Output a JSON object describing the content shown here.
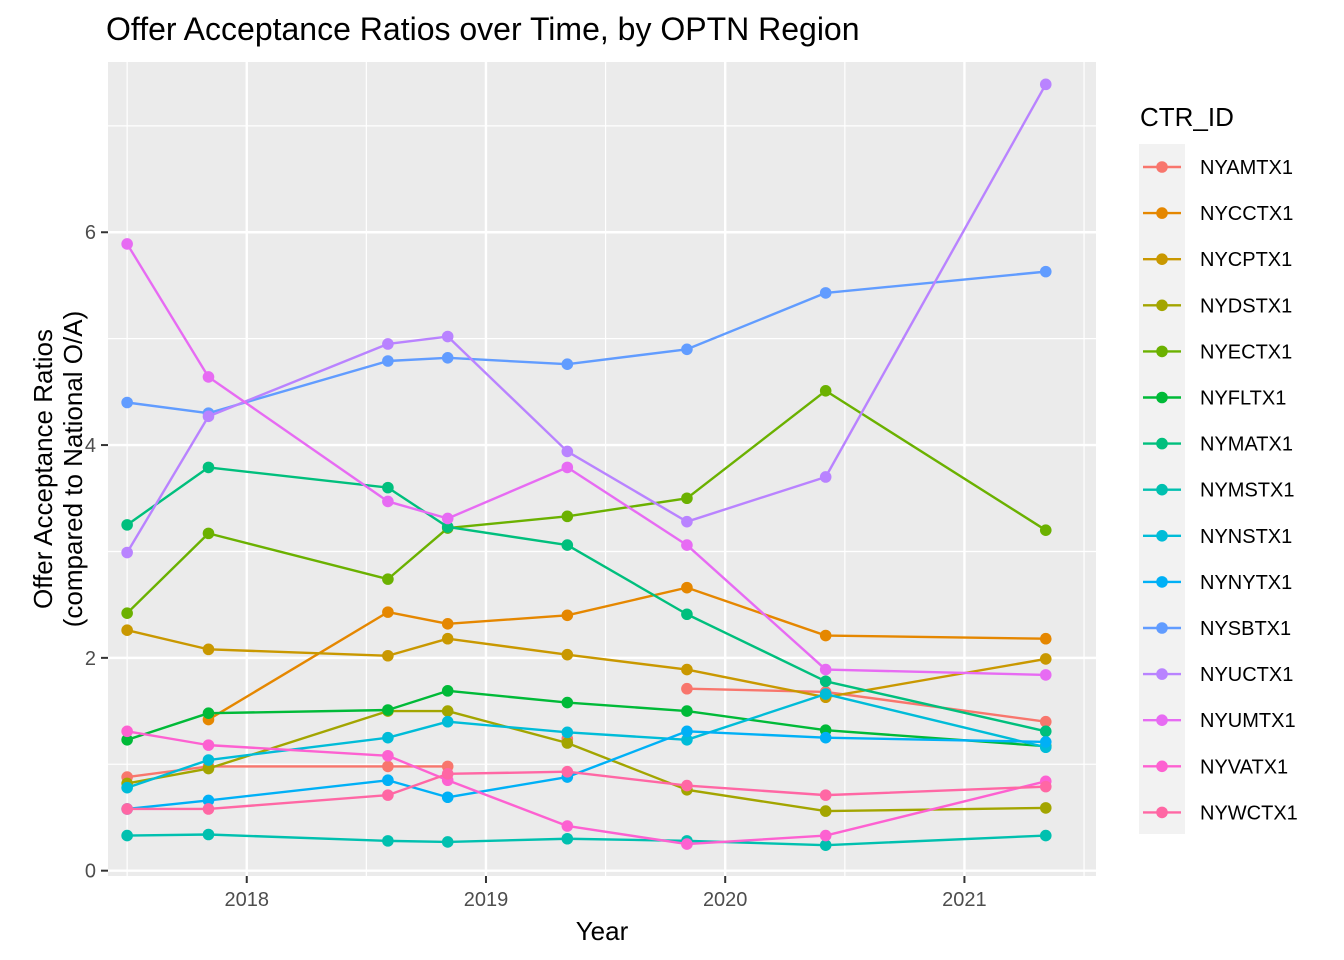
{
  "chart_data": {
    "type": "line",
    "title": "Offer Acceptance Ratios over Time, by OPTN Region",
    "xlabel": "Year",
    "ylabel_line1": "Offer Acceptance Ratios",
    "ylabel_line2": "(compared to National O/A)",
    "xlim": [
      2017.42,
      2021.55
    ],
    "ylim": [
      -0.05,
      7.6
    ],
    "x_ticks": [
      2018,
      2019,
      2020,
      2021
    ],
    "x_tick_labels": [
      "2018",
      "2019",
      "2020",
      "2021"
    ],
    "y_ticks": [
      0,
      2,
      4,
      6
    ],
    "y_tick_labels": [
      "0",
      "2",
      "4",
      "6"
    ],
    "grid": true,
    "legend_title": "CTR_ID",
    "legend_position": "right",
    "x": [
      2017.5,
      2017.84,
      2018.59,
      2018.84,
      2019.34,
      2019.84,
      2020.42,
      2021.34
    ],
    "series": [
      {
        "name": "NYAMTX1",
        "color": "#F8766D",
        "values": [
          0.88,
          0.98,
          0.98,
          0.98,
          null,
          1.71,
          1.68,
          1.4
        ],
        "extra_points": [
          [
            2019.34,
            1.24
          ]
        ]
      },
      {
        "name": "NYCCTX1",
        "color": "#E58700",
        "values": [
          null,
          1.42,
          2.43,
          2.32,
          2.4,
          2.66,
          2.21,
          2.18
        ]
      },
      {
        "name": "NYCPTX1",
        "color": "#C99800",
        "values": [
          2.26,
          2.08,
          2.02,
          2.18,
          2.03,
          1.89,
          1.63,
          1.99
        ]
      },
      {
        "name": "NYDSTX1",
        "color": "#A3A500",
        "values": [
          0.82,
          0.96,
          1.5,
          1.5,
          1.2,
          0.76,
          0.56,
          0.59
        ]
      },
      {
        "name": "NYECTX1",
        "color": "#6BB100",
        "values": [
          2.42,
          3.17,
          2.74,
          3.22,
          3.33,
          3.5,
          4.51,
          3.2
        ]
      },
      {
        "name": "NYFLTX1",
        "color": "#00BA38",
        "values": [
          1.23,
          1.48,
          1.51,
          1.69,
          1.58,
          1.5,
          1.32,
          1.17
        ]
      },
      {
        "name": "NYMATX1",
        "color": "#00BF7D",
        "values": [
          3.25,
          3.79,
          3.6,
          3.23,
          3.06,
          2.41,
          1.78,
          1.31
        ]
      },
      {
        "name": "NYMSTX1",
        "color": "#00C0AF",
        "values": [
          0.33,
          0.34,
          0.28,
          0.27,
          0.3,
          0.28,
          0.24,
          0.33
        ]
      },
      {
        "name": "NYNSTX1",
        "color": "#00BCD8",
        "values": [
          0.78,
          1.04,
          1.25,
          1.4,
          1.3,
          1.23,
          1.66,
          1.16
        ]
      },
      {
        "name": "NYNYTX1",
        "color": "#00B0F6",
        "values": [
          0.58,
          0.66,
          0.85,
          0.69,
          0.88,
          1.31,
          1.25,
          1.21
        ]
      },
      {
        "name": "NYSBTX1",
        "color": "#619CFF",
        "values": [
          4.4,
          4.3,
          4.79,
          4.82,
          4.76,
          4.9,
          5.43,
          5.63
        ]
      },
      {
        "name": "NYUCTX1",
        "color": "#B983FF",
        "values": [
          2.99,
          4.27,
          4.95,
          5.02,
          3.94,
          3.28,
          3.7,
          7.39
        ]
      },
      {
        "name": "NYUMTX1",
        "color": "#E76BF3",
        "values": [
          5.89,
          4.64,
          3.47,
          3.31,
          3.79,
          3.06,
          1.89,
          1.84
        ]
      },
      {
        "name": "NYVATX1",
        "color": "#FD61D1",
        "values": [
          1.31,
          1.18,
          1.08,
          0.85,
          0.42,
          0.25,
          0.33,
          0.84
        ]
      },
      {
        "name": "NYWCTX1",
        "color": "#FF67A4",
        "values": [
          0.58,
          0.58,
          0.71,
          0.91,
          0.93,
          0.8,
          0.71,
          0.79
        ]
      }
    ]
  }
}
